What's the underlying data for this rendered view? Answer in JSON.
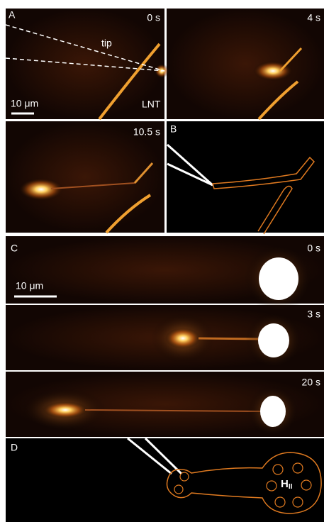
{
  "panels": [
    {
      "label": "A",
      "time": "0 s",
      "tip": "tip",
      "tube": "LNT",
      "scale_bar": "10 μm"
    },
    {
      "time": "4 s"
    },
    {
      "time": "10.5 s"
    },
    {
      "label": "B"
    },
    {
      "label": "C",
      "time": "0 s",
      "scale_bar": "10 μm"
    },
    {
      "time": "3 s"
    },
    {
      "time": "20 s"
    },
    {
      "label": "D",
      "phase": {
        "text": "H",
        "subscript": "II"
      }
    }
  ]
}
